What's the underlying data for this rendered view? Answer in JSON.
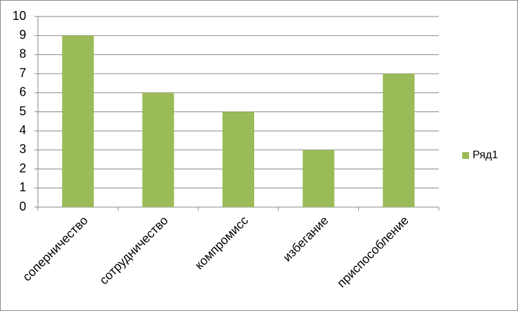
{
  "chart_data": {
    "type": "bar",
    "categories": [
      "соперничество",
      "сотрудничество",
      "компромисс",
      "избегание",
      "приспособление"
    ],
    "series": [
      {
        "name": "Ряд1",
        "color": "#9bbb59",
        "values": [
          9,
          6,
          5,
          3,
          7
        ]
      }
    ],
    "ylim": [
      0,
      10
    ],
    "yticks": [
      0,
      1,
      2,
      3,
      4,
      5,
      6,
      7,
      8,
      9,
      10
    ],
    "grid": true,
    "legend": "right"
  }
}
